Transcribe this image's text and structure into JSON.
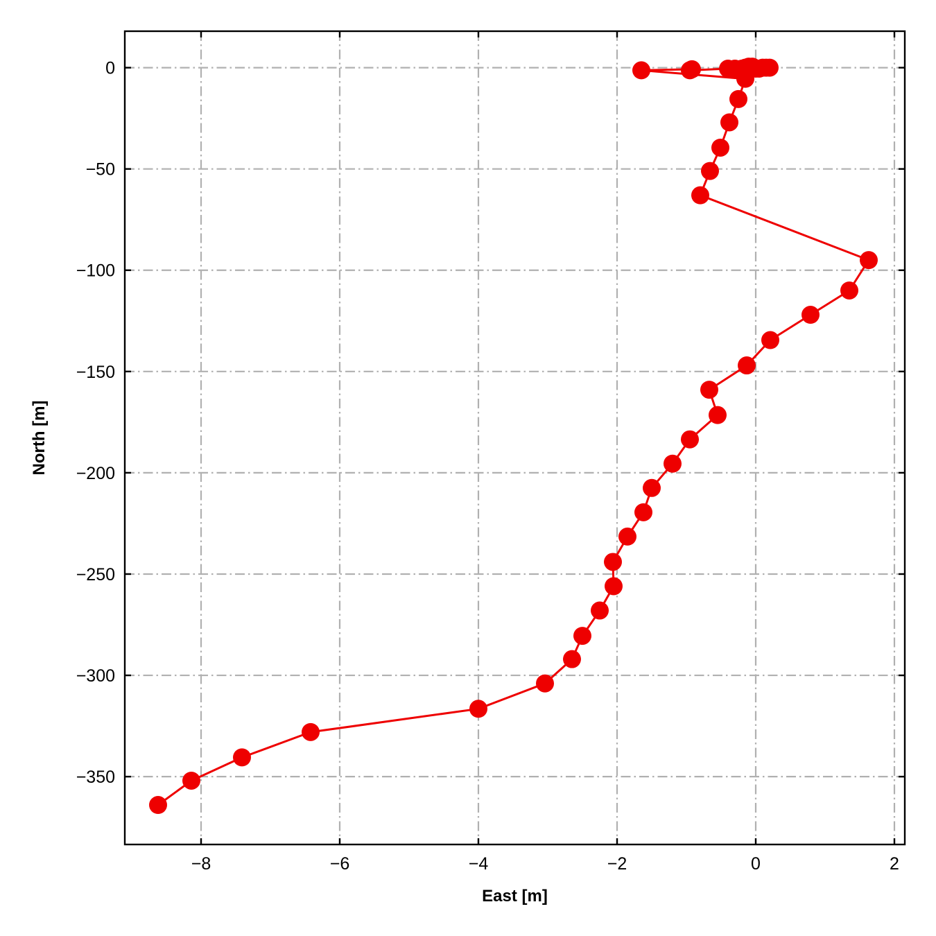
{
  "chart_data": {
    "type": "line",
    "title": "",
    "xlabel": "East [m]",
    "ylabel": "North [m]",
    "xlim": [
      -9.1,
      2.15
    ],
    "ylim": [
      -383.5,
      18
    ],
    "xticks": [
      -8,
      -6,
      -4,
      -2,
      0,
      2
    ],
    "yticks": [
      0,
      -50,
      -100,
      -150,
      -200,
      -250,
      -300,
      -350
    ],
    "xtick_labels": [
      "−8",
      "−6",
      "−4",
      "−2",
      "0",
      "2"
    ],
    "ytick_labels": [
      "0",
      "−50",
      "−100",
      "−150",
      "−200",
      "−250",
      "−300",
      "−350"
    ],
    "grid": true,
    "grid_style": "dashdot",
    "ticks_direction": "in",
    "color": "#ee0000",
    "marker": "circle",
    "series": [
      {
        "x": [
          0.2,
          0.15,
          0.1,
          0.05,
          0.0,
          -0.05,
          -0.1,
          -0.15,
          -0.2,
          -0.3,
          -0.4,
          -0.95,
          -0.92,
          -1.65,
          -0.15,
          -0.25,
          -0.38,
          -0.51,
          -0.66,
          -0.8,
          1.63,
          1.35,
          0.79,
          0.21,
          -0.13,
          -0.67,
          -0.55,
          -0.95,
          -1.2,
          -1.5,
          -1.62,
          -1.85,
          -2.06,
          -2.05,
          -2.25,
          -2.5,
          -2.65,
          -3.04,
          -4.0,
          -6.42,
          -7.41,
          -8.14,
          -8.62
        ],
        "y": [
          0,
          0,
          0,
          -0.5,
          -0.5,
          0.5,
          0.5,
          0,
          -0.5,
          -0.5,
          -0.5,
          -1.3,
          -0.8,
          -1.3,
          -5.5,
          -15.5,
          -27,
          -39.5,
          -51,
          -63,
          -95,
          -110,
          -122,
          -134.5,
          -147,
          -159,
          -171.5,
          -183.5,
          -195.5,
          -207.5,
          -219.5,
          -231.5,
          -244,
          -256,
          -268,
          -280.5,
          -292,
          -304,
          -316.5,
          -328,
          -340.5,
          -352,
          -364
        ]
      }
    ]
  }
}
